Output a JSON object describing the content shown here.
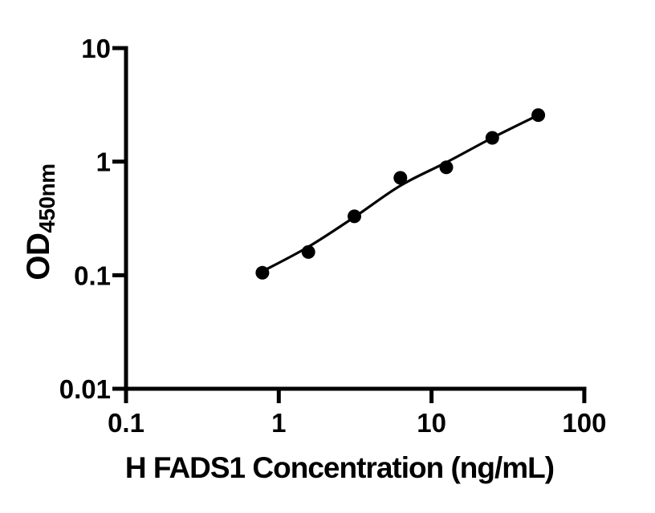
{
  "figure": {
    "kind": "ELISA standard curve",
    "background": "#ffffff",
    "ink": "#000000"
  },
  "chart_data": {
    "type": "scatter",
    "title": "",
    "xlabel": "H FADS1 Concentration (ng/mL)",
    "ylabel": {
      "main": "OD",
      "sub": "450nm"
    },
    "x_scale": "log",
    "y_scale": "log",
    "xlim": [
      0.1,
      100
    ],
    "ylim": [
      0.01,
      10
    ],
    "grid": false,
    "legend": "none",
    "x_ticks": [
      {
        "v": 0.1,
        "label": "0.1"
      },
      {
        "v": 1,
        "label": "1"
      },
      {
        "v": 10,
        "label": "10"
      },
      {
        "v": 100,
        "label": "100"
      }
    ],
    "y_ticks": [
      {
        "v": 10,
        "label": "10"
      },
      {
        "v": 1,
        "label": "1"
      },
      {
        "v": 0.1,
        "label": "0.1"
      },
      {
        "v": 0.01,
        "label": "0.01"
      }
    ],
    "series": [
      {
        "name": "fit-curve",
        "type": "line",
        "x": [
          0.781,
          1.563,
          3.125,
          6.25,
          12.5,
          25,
          50
        ],
        "y": [
          0.108,
          0.178,
          0.325,
          0.615,
          0.985,
          1.62,
          2.57
        ]
      },
      {
        "name": "standard-points",
        "type": "scatter",
        "x": [
          0.781,
          1.563,
          3.125,
          6.25,
          12.5,
          25,
          50
        ],
        "y": [
          0.105,
          0.16,
          0.33,
          0.72,
          0.89,
          1.62,
          2.57
        ]
      }
    ],
    "styles": {
      "ink": "#000000",
      "background": "#ffffff",
      "marker_radius": 8.5,
      "line_width": 3.2,
      "axis_width": 5,
      "tick_font_size": 33
    }
  }
}
